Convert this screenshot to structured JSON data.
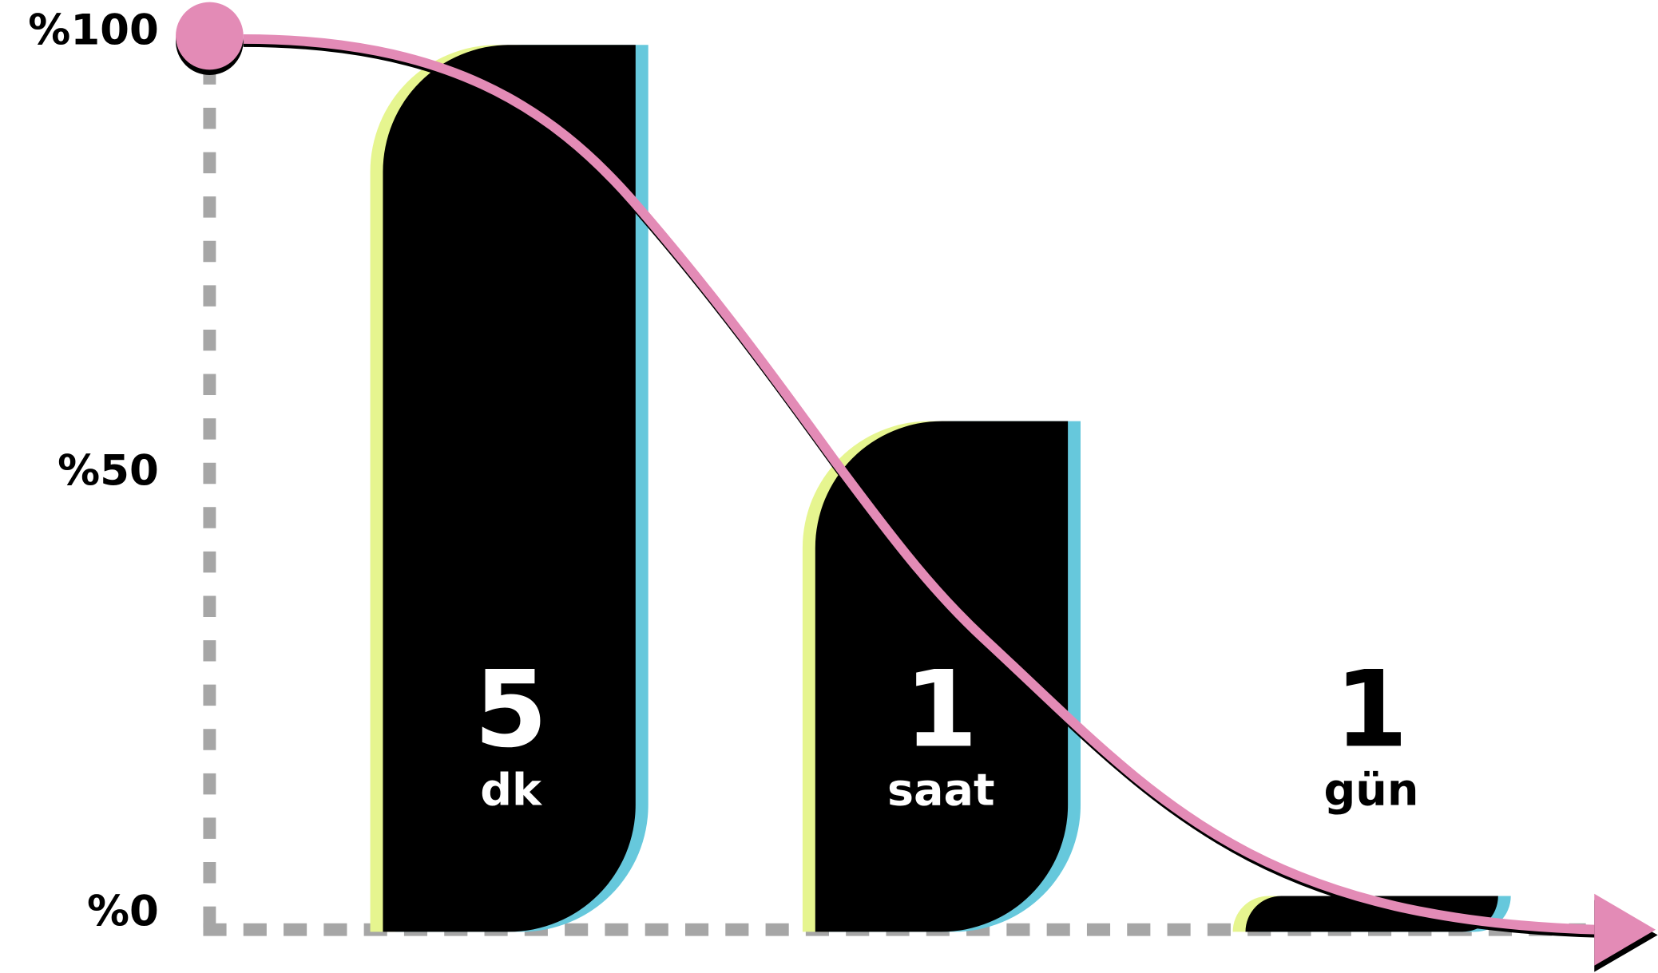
{
  "chart_data": {
    "type": "bar",
    "title": "",
    "xlabel": "",
    "ylabel": "",
    "ylim": [
      0,
      100
    ],
    "yticks": [
      "%100",
      "%50",
      "%0"
    ],
    "ytick_values": [
      100,
      50,
      0
    ],
    "grid": false,
    "categories": [
      {
        "number": "5",
        "unit": "dk"
      },
      {
        "number": "1",
        "unit": "saat"
      },
      {
        "number": "1",
        "unit": "gün"
      }
    ],
    "values": [
      99,
      57,
      4
    ],
    "overlay": "decreasing curve with arrow, from %100 to %0",
    "colors": {
      "bar": "#000000",
      "bar_left_edge": "#e6f58f",
      "bar_right_edge": "#66c8dc",
      "curve": "#e38bb6",
      "axis": "#a6a6a6",
      "label_on_bar": "#ffffff",
      "label_off_bar": "#000000"
    }
  }
}
